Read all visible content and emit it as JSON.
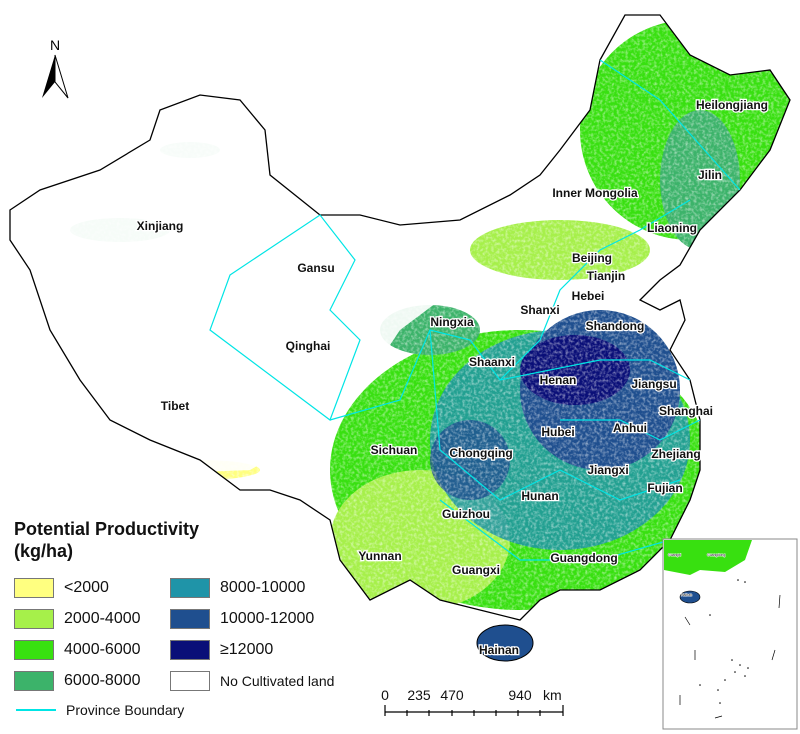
{
  "map": {
    "north_label": "N",
    "provinces": [
      {
        "name": "Heilongjiang"
      },
      {
        "name": "Jilin"
      },
      {
        "name": "Liaoning"
      },
      {
        "name": "Inner Mongolia"
      },
      {
        "name": "Beijing"
      },
      {
        "name": "Tianjin"
      },
      {
        "name": "Hebei"
      },
      {
        "name": "Shanxi"
      },
      {
        "name": "Shandong"
      },
      {
        "name": "Ningxia"
      },
      {
        "name": "Shaanxi"
      },
      {
        "name": "Henan"
      },
      {
        "name": "Jiangsu"
      },
      {
        "name": "Shanghai"
      },
      {
        "name": "Anhui"
      },
      {
        "name": "Hubei"
      },
      {
        "name": "Zhejiang"
      },
      {
        "name": "Chongqing"
      },
      {
        "name": "Jiangxi"
      },
      {
        "name": "Sichuan"
      },
      {
        "name": "Hunan"
      },
      {
        "name": "Fujian"
      },
      {
        "name": "Guizhou"
      },
      {
        "name": "Guangdong"
      },
      {
        "name": "Yunnan"
      },
      {
        "name": "Guangxi"
      },
      {
        "name": "Hainan"
      },
      {
        "name": "Xinjiang"
      },
      {
        "name": "Gansu"
      },
      {
        "name": "Qinghai"
      },
      {
        "name": "Tibet"
      }
    ],
    "inset_labels": [
      "Guangxi",
      "Guangdong",
      "Hainan"
    ],
    "boundary_color": "#00e5e5"
  },
  "legend": {
    "title_line1": "Potential Productivity",
    "title_line2": "(kg/ha)",
    "classes": [
      {
        "label": "<2000",
        "color": "#ffff80"
      },
      {
        "label": "2000-4000",
        "color": "#a6f04a"
      },
      {
        "label": "4000-6000",
        "color": "#38e010"
      },
      {
        "label": "6000-8000",
        "color": "#3cb36a"
      },
      {
        "label": "8000-10000",
        "color": "#1f94a8"
      },
      {
        "label": "10000-12000",
        "color": "#1f4f8f"
      },
      {
        "label": "≥12000",
        "color": "#0a0f78"
      },
      {
        "label": "No Cultivated land",
        "color": "#ffffff"
      }
    ],
    "boundary_label": "Province Boundary"
  },
  "scale_bar": {
    "ticks": [
      "0",
      "235",
      "470",
      "940"
    ],
    "unit": "km"
  }
}
